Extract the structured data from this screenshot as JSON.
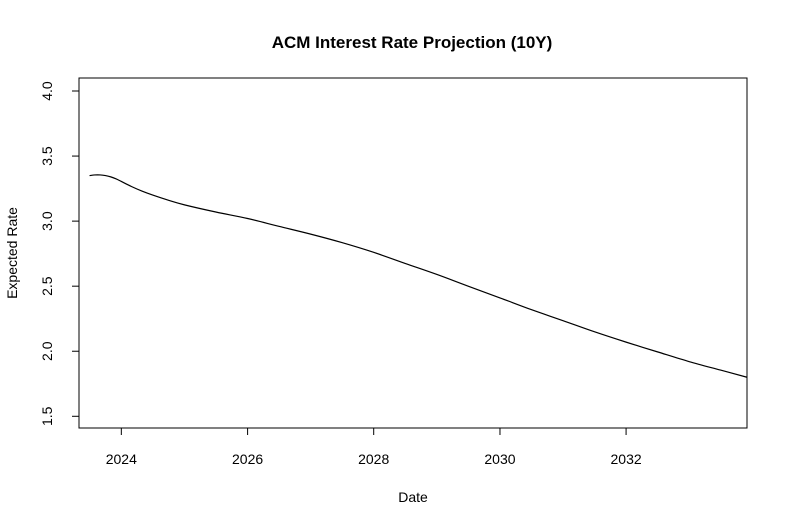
{
  "chart_data": {
    "type": "line",
    "title": "ACM Interest Rate Projection (10Y)",
    "xlabel": "Date",
    "ylabel": "Expected Rate",
    "x_type": "date",
    "xlim": [
      "2023-05-01",
      "2033-12-01"
    ],
    "ylim": [
      1.5,
      4.0
    ],
    "x_ticks": [
      "2024",
      "2026",
      "2028",
      "2030",
      "2032"
    ],
    "y_ticks": [
      "1.5",
      "2.0",
      "2.5",
      "3.0",
      "3.5",
      "4.0"
    ],
    "grid": false,
    "legend": "none",
    "series": [
      {
        "color": "#000000",
        "points": [
          {
            "x": "2023-07-01",
            "y": 3.35
          },
          {
            "x": "2023-08-01",
            "y": 3.355
          },
          {
            "x": "2023-09-01",
            "y": 3.355
          },
          {
            "x": "2023-10-01",
            "y": 3.35
          },
          {
            "x": "2023-11-01",
            "y": 3.34
          },
          {
            "x": "2023-12-01",
            "y": 3.325
          },
          {
            "x": "2024-01-01",
            "y": 3.305
          },
          {
            "x": "2024-03-01",
            "y": 3.265
          },
          {
            "x": "2024-05-01",
            "y": 3.23
          },
          {
            "x": "2024-07-01",
            "y": 3.2
          },
          {
            "x": "2024-10-01",
            "y": 3.16
          },
          {
            "x": "2025-01-01",
            "y": 3.125
          },
          {
            "x": "2025-07-01",
            "y": 3.07
          },
          {
            "x": "2026-01-01",
            "y": 3.02
          },
          {
            "x": "2026-07-01",
            "y": 2.96
          },
          {
            "x": "2027-01-01",
            "y": 2.9
          },
          {
            "x": "2027-07-01",
            "y": 2.835
          },
          {
            "x": "2028-01-01",
            "y": 2.76
          },
          {
            "x": "2028-07-01",
            "y": 2.675
          },
          {
            "x": "2029-01-01",
            "y": 2.59
          },
          {
            "x": "2029-07-01",
            "y": 2.5
          },
          {
            "x": "2030-01-01",
            "y": 2.41
          },
          {
            "x": "2030-07-01",
            "y": 2.32
          },
          {
            "x": "2031-01-01",
            "y": 2.235
          },
          {
            "x": "2031-07-01",
            "y": 2.15
          },
          {
            "x": "2032-01-01",
            "y": 2.07
          },
          {
            "x": "2032-07-01",
            "y": 1.995
          },
          {
            "x": "2033-01-01",
            "y": 1.92
          },
          {
            "x": "2033-07-01",
            "y": 1.855
          },
          {
            "x": "2033-12-01",
            "y": 1.8
          }
        ]
      }
    ]
  }
}
